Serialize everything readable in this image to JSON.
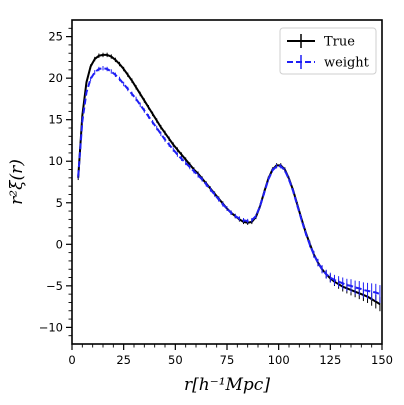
{
  "chart_data": {
    "type": "line",
    "xlabel": "r[h⁻¹Mpc]",
    "ylabel": "r²ξ(r)",
    "xlim": [
      0,
      150
    ],
    "ylim": [
      -12,
      27
    ],
    "xticks": [
      0,
      25,
      50,
      75,
      100,
      125,
      150
    ],
    "yticks": [
      -10,
      -5,
      0,
      5,
      10,
      15,
      20,
      25
    ],
    "grid": false,
    "legend_position": "top-right",
    "series": [
      {
        "name": "True",
        "color": "#000000",
        "style": "solid",
        "x": [
          3,
          5,
          7,
          9,
          11,
          13,
          15,
          17,
          19,
          21,
          23,
          25,
          27,
          29,
          31,
          33,
          35,
          37,
          39,
          41,
          43,
          45,
          47,
          49,
          51,
          53,
          55,
          57,
          59,
          61,
          63,
          65,
          67,
          69,
          71,
          73,
          75,
          77,
          79,
          81,
          83,
          85,
          87,
          89,
          91,
          93,
          95,
          97,
          99,
          101,
          103,
          105,
          107,
          109,
          111,
          113,
          115,
          117,
          119,
          121,
          123,
          125,
          127,
          129,
          131,
          133,
          135,
          137,
          139,
          141,
          143,
          145,
          147,
          149
        ],
        "y": [
          8.0,
          15.5,
          19.5,
          21.4,
          22.3,
          22.7,
          22.8,
          22.8,
          22.6,
          22.2,
          21.7,
          21.1,
          20.4,
          19.7,
          18.9,
          18.1,
          17.3,
          16.5,
          15.7,
          14.9,
          14.1,
          13.4,
          12.7,
          12.0,
          11.4,
          10.8,
          10.2,
          9.6,
          9.0,
          8.5,
          7.9,
          7.3,
          6.7,
          6.1,
          5.5,
          4.9,
          4.3,
          3.8,
          3.4,
          3.0,
          2.7,
          2.6,
          2.7,
          3.3,
          4.6,
          6.3,
          7.9,
          9.0,
          9.5,
          9.5,
          9.0,
          7.9,
          6.5,
          4.8,
          3.1,
          1.5,
          0.1,
          -1.2,
          -2.2,
          -3.0,
          -3.6,
          -4.1,
          -4.5,
          -4.8,
          -5.1,
          -5.3,
          -5.5,
          -5.7,
          -5.9,
          -6.1,
          -6.3,
          -6.6,
          -6.9,
          -7.2
        ]
      },
      {
        "name": "weight",
        "color": "#1f1ff5",
        "style": "dashed",
        "x": [
          3,
          5,
          7,
          9,
          11,
          13,
          15,
          17,
          19,
          21,
          23,
          25,
          27,
          29,
          31,
          33,
          35,
          37,
          39,
          41,
          43,
          45,
          47,
          49,
          51,
          53,
          55,
          57,
          59,
          61,
          63,
          65,
          67,
          69,
          71,
          73,
          75,
          77,
          79,
          81,
          83,
          85,
          87,
          89,
          91,
          93,
          95,
          97,
          99,
          101,
          103,
          105,
          107,
          109,
          111,
          113,
          115,
          117,
          119,
          121,
          123,
          125,
          127,
          129,
          131,
          133,
          135,
          137,
          139,
          141,
          143,
          145,
          147,
          149
        ],
        "y": [
          8.2,
          14.8,
          18.3,
          19.9,
          20.7,
          21.1,
          21.2,
          21.1,
          20.8,
          20.4,
          19.9,
          19.3,
          18.7,
          18.1,
          17.5,
          16.8,
          16.1,
          15.4,
          14.7,
          14.0,
          13.3,
          12.6,
          12.0,
          11.4,
          10.8,
          10.3,
          9.8,
          9.3,
          8.8,
          8.3,
          7.8,
          7.2,
          6.6,
          6.0,
          5.4,
          4.8,
          4.3,
          3.8,
          3.4,
          3.1,
          2.9,
          2.8,
          2.9,
          3.4,
          4.6,
          6.2,
          7.8,
          8.9,
          9.4,
          9.4,
          8.9,
          7.8,
          6.4,
          4.7,
          3.0,
          1.4,
          0.0,
          -1.2,
          -2.2,
          -3.0,
          -3.6,
          -4.0,
          -4.3,
          -4.5,
          -4.7,
          -4.9,
          -5.0,
          -5.2,
          -5.3,
          -5.5,
          -5.6,
          -5.7,
          -5.8,
          -6.0
        ]
      }
    ]
  }
}
